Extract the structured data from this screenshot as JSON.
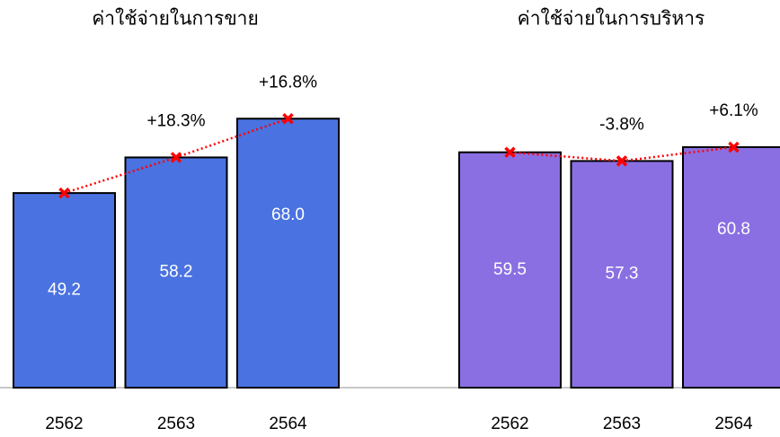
{
  "chart_data": [
    {
      "type": "bar",
      "title": "ค่าใช้จ่ายในการขาย",
      "categories": [
        "2562",
        "2563",
        "2564"
      ],
      "values": [
        49.2,
        58.2,
        68.0
      ],
      "value_labels": [
        "49.2",
        "58.2",
        "68.0"
      ],
      "annotations": [
        null,
        "+18.3%",
        "+16.8%"
      ],
      "color": "#4a72e0",
      "line_color": "#ff0000",
      "ylim": [
        0,
        98
      ]
    },
    {
      "type": "bar",
      "title": "ค่าใช้จ่ายในการบริหาร",
      "categories": [
        "2562",
        "2563",
        "2564"
      ],
      "values": [
        59.5,
        57.3,
        60.8
      ],
      "value_labels": [
        "59.5",
        "57.3",
        "60.8"
      ],
      "annotations": [
        null,
        "-3.8%",
        "+6.1%"
      ],
      "color": "#8a6fe2",
      "line_color": "#ff0000",
      "ylim": [
        0,
        98
      ]
    }
  ]
}
